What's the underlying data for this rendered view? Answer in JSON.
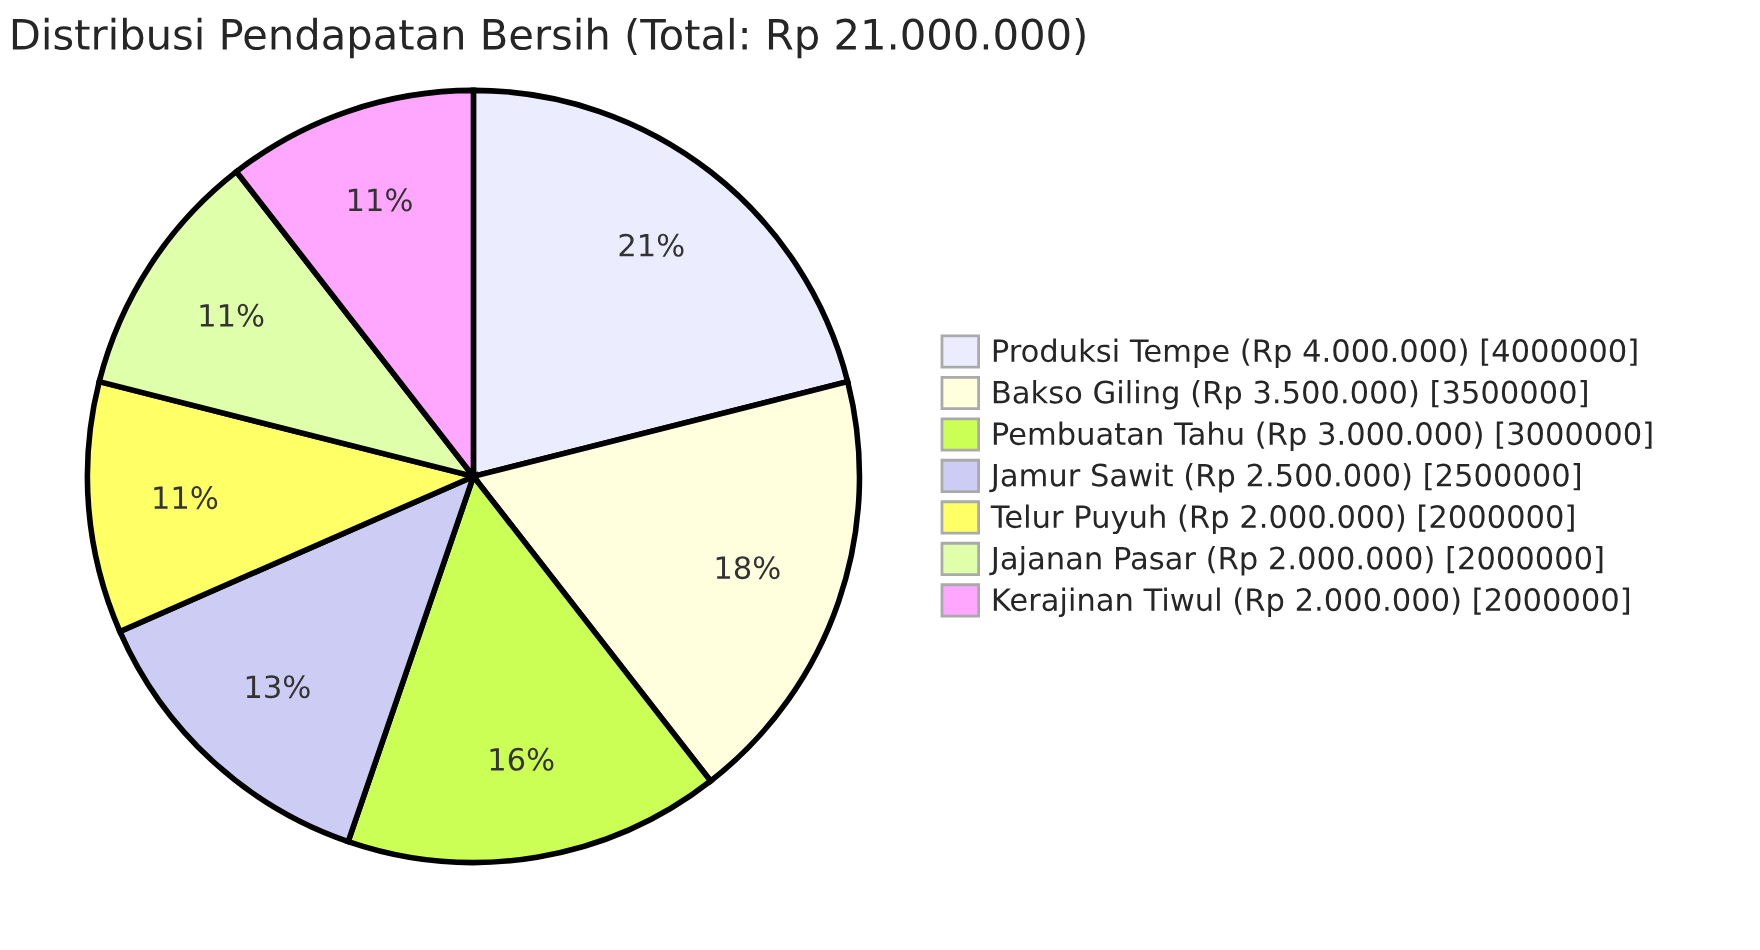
{
  "chart_data": {
    "type": "pie",
    "title": "Distribusi Pendapatan Bersih (Total: Rp 21.000.000)",
    "categories": [
      "Produksi Tempe (Rp 4.000.000) [4000000]",
      "Bakso Giling (Rp 3.500.000) [3500000]",
      "Pembuatan Tahu (Rp 3.000.000) [3000000]",
      "Jamur Sawit (Rp 2.500.000) [2500000]",
      "Telur Puyuh (Rp 2.000.000) [2000000]",
      "Jajanan Pasar (Rp 2.000.000) [2000000]",
      "Kerajinan Tiwul (Rp 2.000.000) [2000000]"
    ],
    "values": [
      21.05,
      18.42,
      15.79,
      13.16,
      10.53,
      10.53,
      10.52
    ],
    "value_labels": [
      "21%",
      "18%",
      "16%",
      "13%",
      "11%",
      "11%",
      "11%"
    ],
    "colors": [
      "#ececff",
      "#ffffde",
      "#ccff55",
      "#ccccf5",
      "#ffff66",
      "#e0ffaa",
      "#ffa6ff"
    ],
    "legend": "right"
  }
}
